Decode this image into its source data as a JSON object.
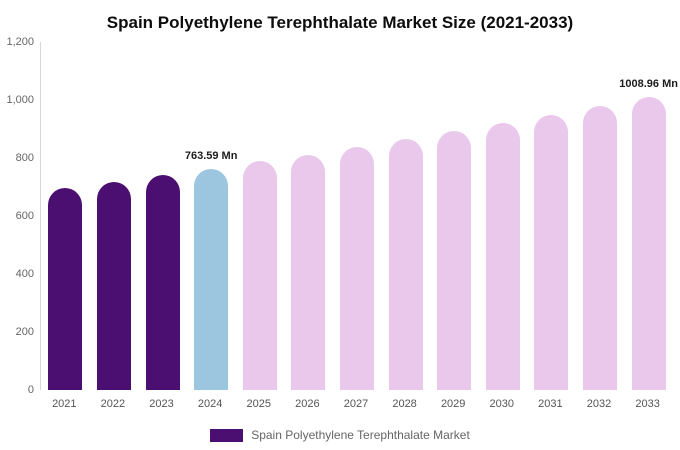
{
  "chart_data": {
    "type": "bar",
    "title": "Spain Polyethylene Terephthalate Market Size (2021-2033)",
    "categories": [
      "2021",
      "2022",
      "2023",
      "2024",
      "2025",
      "2026",
      "2027",
      "2028",
      "2029",
      "2030",
      "2031",
      "2032",
      "2033"
    ],
    "values": [
      696,
      718,
      740,
      763.59,
      788,
      812,
      838,
      864,
      892,
      920,
      949,
      979,
      1008.96
    ],
    "bar_colors": [
      "#4a0f70",
      "#4a0f70",
      "#4a0f70",
      "#9cc6e0",
      "#eac8ec",
      "#eac8ec",
      "#eac8ec",
      "#eac8ec",
      "#eac8ec",
      "#eac8ec",
      "#eac8ec",
      "#eac8ec",
      "#eac8ec"
    ],
    "annotations": [
      {
        "category": "2024",
        "text": "763.59 Mn"
      },
      {
        "category": "2033",
        "text": "1008.96 Mn"
      }
    ],
    "xlabel": "",
    "ylabel": "",
    "ylim": [
      0,
      1200
    ],
    "yticks": [
      0,
      200,
      400,
      600,
      800,
      1000,
      1200
    ],
    "ytick_labels": [
      "0",
      "200",
      "400",
      "600",
      "800",
      "1,000",
      "1,200"
    ],
    "grid": false,
    "legend_position": "bottom"
  },
  "legend": {
    "label": "Spain Polyethylene Terephthalate Market",
    "color": "#4a0f70"
  },
  "colors": {
    "historical_bar": "#4a0f70",
    "highlight_bar": "#9cc6e0",
    "forecast_bar": "#eac8ec",
    "axis_text": "#666666",
    "annotation_text": "#1c1c1c"
  }
}
